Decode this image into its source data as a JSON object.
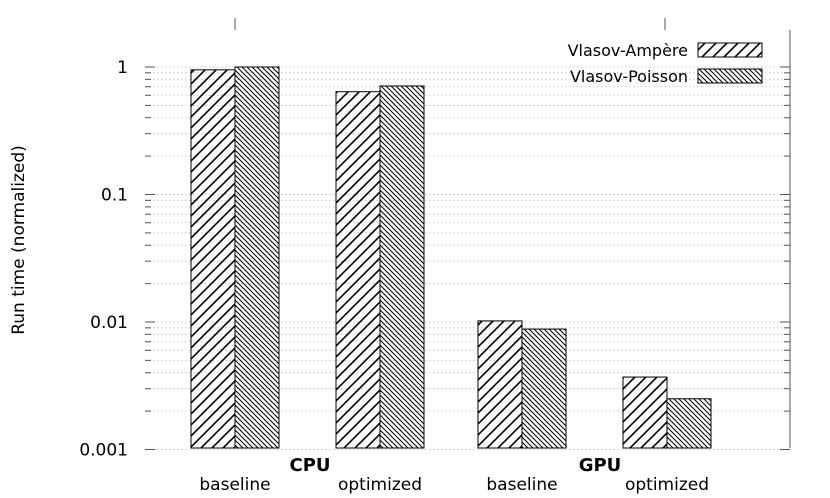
{
  "chart_data": {
    "type": "bar",
    "yscale": "log",
    "ylim": [
      0.001,
      1.8
    ],
    "ylabel": "Run time (normalized)",
    "yticks": [
      {
        "value": 1,
        "label": "1"
      },
      {
        "value": 0.1,
        "label": "0.1"
      },
      {
        "value": 0.01,
        "label": "0.01"
      },
      {
        "value": 0.001,
        "label": "0.001"
      }
    ],
    "groups": [
      {
        "name": "CPU",
        "categories": [
          "baseline",
          "optimized"
        ]
      },
      {
        "name": "GPU",
        "categories": [
          "baseline",
          "optimized"
        ]
      }
    ],
    "categories": [
      "baseline",
      "optimized",
      "baseline",
      "optimized"
    ],
    "series": [
      {
        "name": "Vlasov-Ampère",
        "hatch": "forward-diagonal",
        "values": [
          0.95,
          0.64,
          0.0102,
          0.0037
        ]
      },
      {
        "name": "Vlasov-Poisson",
        "hatch": "back-diagonal",
        "values": [
          1.0,
          0.71,
          0.0088,
          0.0025
        ]
      }
    ],
    "legend": "top-right",
    "grid": true
  }
}
